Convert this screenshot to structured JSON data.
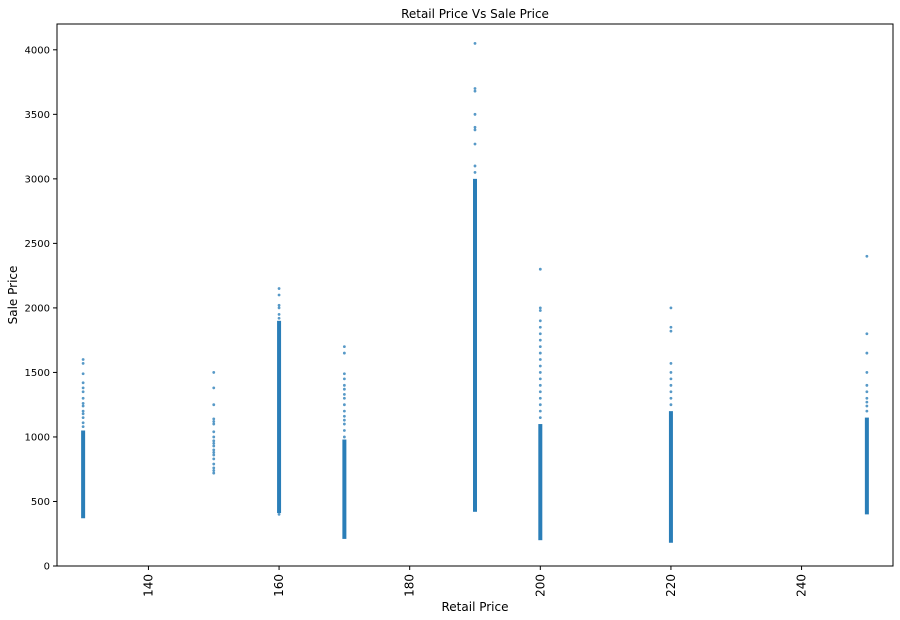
{
  "chart_data": {
    "type": "scatter",
    "title": "Retail Price Vs Sale Price",
    "xlabel": "Retail Price",
    "ylabel": "Sale Price",
    "xlim": [
      126,
      254
    ],
    "ylim": [
      0,
      4200
    ],
    "x_ticks": [
      140,
      160,
      180,
      200,
      220,
      240
    ],
    "y_ticks": [
      0,
      500,
      1000,
      1500,
      2000,
      2500,
      3000,
      3500,
      4000
    ],
    "x_tick_rotation": 90,
    "grid": false,
    "legend": "none",
    "marker_color": "#1f77b4",
    "groups": [
      {
        "x": 130,
        "dense_range": [
          370,
          1050
        ],
        "sparse_points": [
          1080,
          1110,
          1150,
          1180,
          1200,
          1240,
          1260,
          1300,
          1350,
          1380,
          1420,
          1490,
          1570,
          1600
        ]
      },
      {
        "x": 150,
        "dense_range": null,
        "sparse_points": [
          720,
          740,
          760,
          790,
          830,
          860,
          880,
          900,
          930,
          950,
          970,
          1000,
          1040,
          1100,
          1120,
          1140,
          1250,
          1380,
          1500
        ]
      },
      {
        "x": 160,
        "dense_range": [
          410,
          1900
        ],
        "sparse_points": [
          400,
          1920,
          1950,
          2000,
          2020,
          2100,
          2150
        ]
      },
      {
        "x": 170,
        "dense_range": [
          210,
          980
        ],
        "sparse_points": [
          1000,
          1050,
          1100,
          1130,
          1160,
          1200,
          1250,
          1300,
          1330,
          1370,
          1400,
          1450,
          1490,
          1650,
          1700
        ]
      },
      {
        "x": 190,
        "dense_range": [
          420,
          3000
        ],
        "sparse_points": [
          3050,
          3100,
          3270,
          3380,
          3400,
          3500,
          3680,
          3700,
          4050
        ]
      },
      {
        "x": 200,
        "dense_range": [
          200,
          1100
        ],
        "sparse_points": [
          1150,
          1200,
          1250,
          1300,
          1350,
          1400,
          1450,
          1500,
          1550,
          1600,
          1650,
          1700,
          1750,
          1800,
          1850,
          1900,
          1980,
          2000,
          2300
        ]
      },
      {
        "x": 220,
        "dense_range": [
          180,
          1200
        ],
        "sparse_points": [
          1250,
          1300,
          1350,
          1400,
          1450,
          1500,
          1570,
          1820,
          1850,
          2000
        ]
      },
      {
        "x": 250,
        "dense_range": [
          400,
          1150
        ],
        "sparse_points": [
          1200,
          1240,
          1270,
          1300,
          1350,
          1400,
          1500,
          1650,
          1800,
          2400
        ]
      }
    ]
  }
}
